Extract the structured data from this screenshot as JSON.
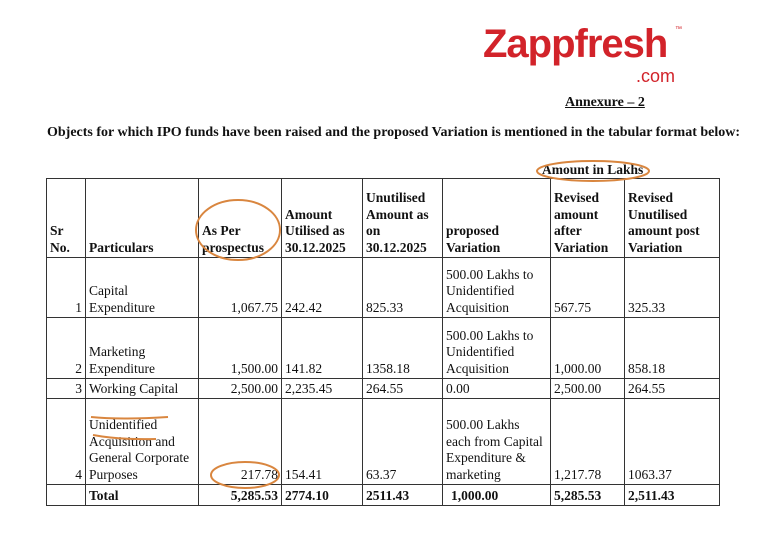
{
  "logo": {
    "brand": "Zappfresh",
    "suffix": ".com",
    "tm": "™"
  },
  "annexure": "Annexure – 2",
  "heading": "Objects for which IPO funds have been raised and the proposed Variation is mentioned in the tabular format below:",
  "unit_note": "Amount in Lakhs",
  "annotation_color": "#d9863f",
  "table": {
    "headers": [
      "Sr No.",
      "Particulars",
      "As Per prospectus",
      "Amount Utilised as 30.12.2025",
      "Unutilised Amount as on 30.12.2025",
      "proposed Variation",
      "Revised amount after Variation",
      "Revised Unutilised amount post Variation"
    ],
    "rows": [
      {
        "sr": "1",
        "particulars": "Capital Expenditure",
        "prospectus": "1,067.75",
        "utilised": "242.42",
        "unutilised": "825.33",
        "variation": "500.00 Lakhs to Unidentified Acquisition",
        "revised": "567.75",
        "revised_unutilised": "325.33"
      },
      {
        "sr": "2",
        "particulars": "Marketing Expenditure",
        "prospectus": "1,500.00",
        "utilised": "141.82",
        "unutilised": "1358.18",
        "variation": "500.00 Lakhs to Unidentified Acquisition",
        "revised": "1,000.00",
        "revised_unutilised": "858.18"
      },
      {
        "sr": "3",
        "particulars": "Working Capital",
        "prospectus": "2,500.00",
        "utilised": "2,235.45",
        "unutilised": "264.55",
        "variation": "0.00",
        "revised": "2,500.00",
        "revised_unutilised": "264.55"
      },
      {
        "sr": "4",
        "particulars": "Unidentified Acquisition and General Corporate Purposes",
        "prospectus": "217.78",
        "utilised": "154.41",
        "unutilised": "63.37",
        "variation": "500.00 Lakhs each from Capital Expenditure & marketing",
        "revised": "1,217.78",
        "revised_unutilised": "1063.37"
      }
    ],
    "total": {
      "label": "Total",
      "prospectus": "5,285.53",
      "utilised": "2774.10",
      "unutilised": "2511.43",
      "variation": "1,000.00",
      "revised": "5,285.53",
      "revised_unutilised": "2,511.43"
    }
  }
}
